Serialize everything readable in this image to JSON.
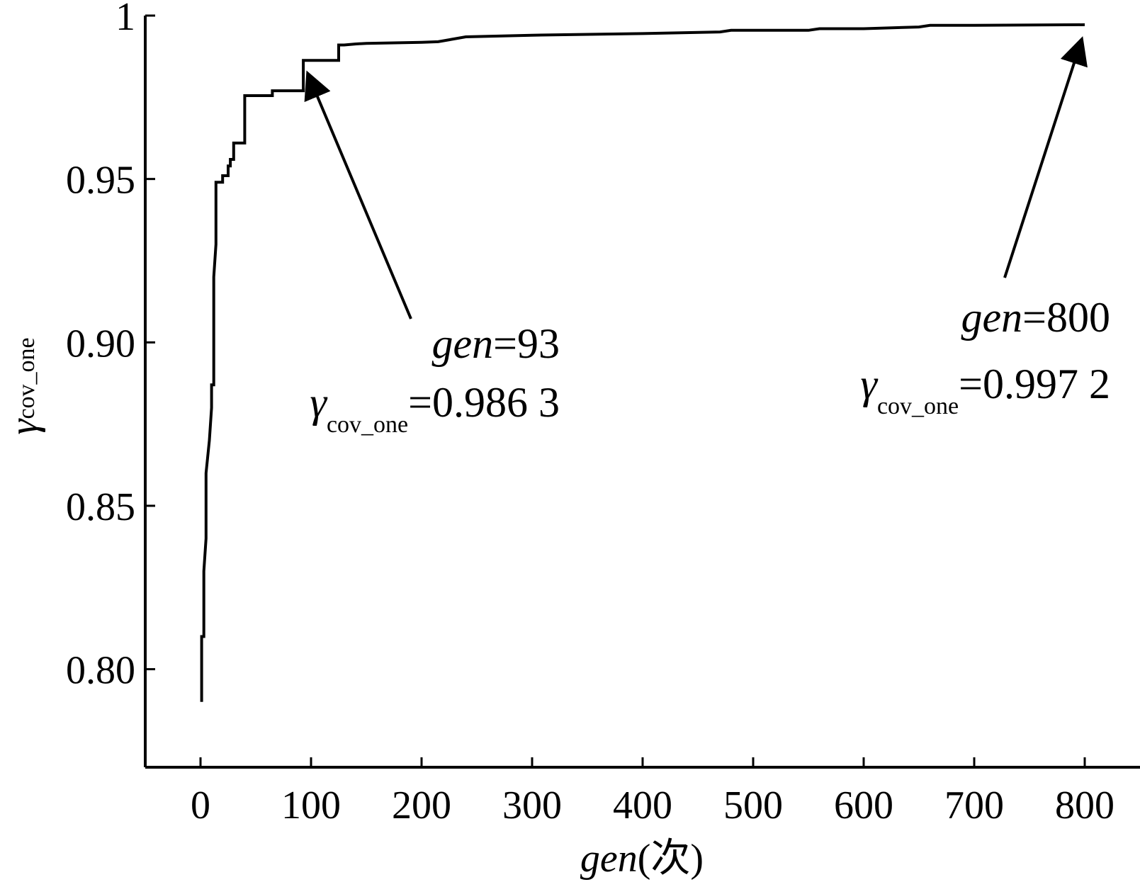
{
  "chart_data": {
    "type": "line",
    "title": "",
    "xlabel": {
      "var": "gen",
      "unit": "(次)"
    },
    "ylabel": {
      "symbol": "γ",
      "subscript": "cov_one"
    },
    "xlim": [
      -50,
      850
    ],
    "ylim": [
      0.77,
      1.0
    ],
    "grid": false,
    "x_ticks": [
      0,
      100,
      200,
      300,
      400,
      500,
      600,
      700,
      800
    ],
    "x_tick_labels": [
      "0",
      "100",
      "200",
      "300",
      "400",
      "500",
      "600",
      "700",
      "800"
    ],
    "y_ticks": [
      0.8,
      0.85,
      0.9,
      0.95,
      1.0
    ],
    "y_tick_labels": [
      "0.80",
      "0.85",
      "0.90",
      "0.95",
      "1"
    ],
    "series": [
      {
        "x": [
          1,
          1,
          3,
          3,
          5,
          5,
          8,
          8,
          10,
          10,
          12,
          12,
          14,
          14,
          15,
          15,
          20,
          20,
          25,
          25,
          27,
          27,
          30,
          30,
          40,
          40,
          45,
          45,
          65,
          65,
          80,
          80,
          93,
          93,
          100,
          100,
          125,
          125,
          130,
          140,
          150,
          200,
          215,
          240,
          300,
          400,
          470,
          480,
          550,
          560,
          600,
          650,
          660,
          700,
          800
        ],
        "y": [
          0.79,
          0.81,
          0.81,
          0.83,
          0.84,
          0.86,
          0.87,
          0.87,
          0.88,
          0.887,
          0.887,
          0.92,
          0.93,
          0.949,
          0.949,
          0.949,
          0.949,
          0.951,
          0.951,
          0.954,
          0.954,
          0.956,
          0.956,
          0.961,
          0.961,
          0.9755,
          0.9755,
          0.9755,
          0.9755,
          0.977,
          0.977,
          0.977,
          0.977,
          0.9863,
          0.9863,
          0.9863,
          0.9863,
          0.991,
          0.991,
          0.9913,
          0.9915,
          0.9918,
          0.992,
          0.9935,
          0.994,
          0.9945,
          0.995,
          0.9955,
          0.9955,
          0.996,
          0.996,
          0.9965,
          0.997,
          0.997,
          0.9972
        ]
      }
    ],
    "annotations": [
      {
        "x": 93,
        "y": 0.9863,
        "line1_var": "gen",
        "line1_rest": "=93",
        "line2_symbol": "γ",
        "line2_sub": "cov_one",
        "line2_rest": "=0.986 3"
      },
      {
        "x": 800,
        "y": 0.9972,
        "line1_var": "gen",
        "line1_rest": "=800",
        "line2_symbol": "γ",
        "line2_sub": "cov_one",
        "line2_rest": "=0.997 2"
      }
    ]
  }
}
